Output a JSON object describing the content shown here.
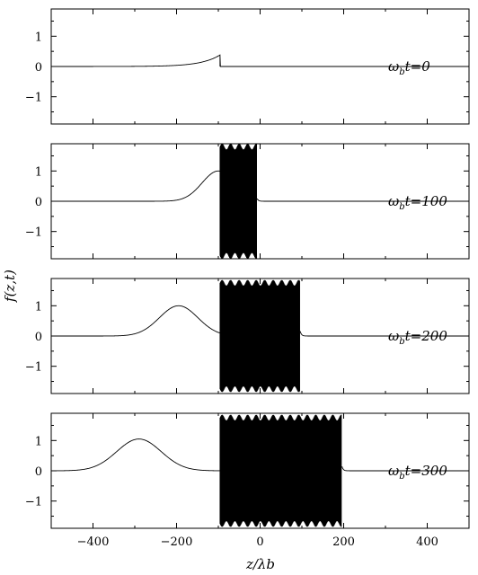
{
  "chart_data": {
    "type": "line",
    "layout": "4 vertically stacked panels sharing the x axis",
    "xlabel": "z/λb",
    "ylabel": "f(z,t)",
    "xlim": [
      -500,
      500
    ],
    "ylim": [
      -1.9,
      1.9
    ],
    "xticks": [
      -400,
      -200,
      0,
      200,
      400
    ],
    "yticks": [
      -1,
      0,
      1
    ],
    "grid": false,
    "panels": [
      {
        "label": "ωbt=0",
        "label_parts": {
          "omega": "ω",
          "sub": "b",
          "rest": "t=0"
        },
        "envelope": {
          "front": -96,
          "peak": -96,
          "width": 45,
          "amp": 0.38,
          "kind": "growing-exponential"
        },
        "oscillation": null,
        "spike_after": null
      },
      {
        "label": "ωbt=100",
        "label_parts": {
          "omega": "ω",
          "sub": "b",
          "rest": "t=100"
        },
        "envelope": {
          "front": -96,
          "peak": -100,
          "width": 55,
          "amp": 1.0,
          "kind": "gaussian"
        },
        "oscillation": {
          "from": -96,
          "to": -8,
          "amplitude": 1.9
        },
        "spike_after": {
          "x": -8,
          "value": 0.12
        }
      },
      {
        "label": "ωbt=200",
        "label_parts": {
          "omega": "ω",
          "sub": "b",
          "rest": "t=200"
        },
        "envelope": {
          "front": -96,
          "peak": -195,
          "width": 65,
          "amp": 1.0,
          "kind": "gaussian"
        },
        "oscillation": {
          "from": -96,
          "to": 95,
          "amplitude": 1.85
        },
        "spike_after": {
          "x": 95,
          "value": 0.22
        }
      },
      {
        "label": "ωbt=300",
        "label_parts": {
          "omega": "ω",
          "sub": "b",
          "rest": "t=300"
        },
        "envelope": {
          "front": -96,
          "peak": -290,
          "width": 75,
          "amp": 1.05,
          "kind": "gaussian"
        },
        "oscillation": {
          "from": -96,
          "to": 195,
          "amplitude": 1.85
        },
        "spike_after": {
          "x": 195,
          "value": 0.2
        }
      }
    ]
  },
  "colors": {
    "line": "#000000",
    "background": "#ffffff"
  }
}
